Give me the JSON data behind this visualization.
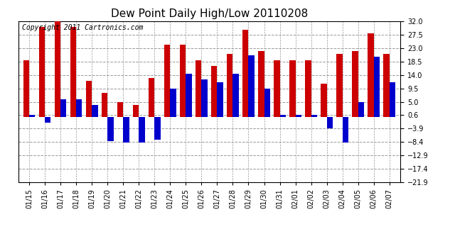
{
  "title": "Dew Point Daily High/Low 20110208",
  "copyright": "Copyright 2011 Cartronics.com",
  "dates": [
    "01/15",
    "01/16",
    "01/17",
    "01/18",
    "01/19",
    "01/20",
    "01/21",
    "01/22",
    "01/23",
    "01/24",
    "01/25",
    "01/26",
    "01/27",
    "01/28",
    "01/29",
    "01/30",
    "01/31",
    "02/01",
    "02/02",
    "02/03",
    "02/04",
    "02/05",
    "02/06",
    "02/07"
  ],
  "highs": [
    19.0,
    30.0,
    32.0,
    30.0,
    12.0,
    8.0,
    5.0,
    4.0,
    13.0,
    24.0,
    24.0,
    19.0,
    17.0,
    21.0,
    29.0,
    22.0,
    19.0,
    19.0,
    19.0,
    11.0,
    21.0,
    22.0,
    28.0,
    21.0
  ],
  "lows": [
    0.6,
    -2.0,
    6.0,
    6.0,
    4.0,
    -8.0,
    -8.5,
    -8.5,
    -7.5,
    9.5,
    14.5,
    12.5,
    11.5,
    14.5,
    20.5,
    9.5,
    0.6,
    0.6,
    0.6,
    -3.9,
    -8.5,
    5.0,
    20.0,
    11.5
  ],
  "ylim": [
    -21.9,
    32.0
  ],
  "yticks": [
    -21.9,
    -17.4,
    -12.9,
    -8.4,
    -3.9,
    0.6,
    5.0,
    9.5,
    14.0,
    18.5,
    23.0,
    27.5,
    32.0
  ],
  "bar_width": 0.38,
  "high_color": "#cc0000",
  "low_color": "#0000cc",
  "background_color": "#ffffff",
  "grid_color": "#999999",
  "title_fontsize": 11,
  "tick_fontsize": 7,
  "copyright_fontsize": 7
}
